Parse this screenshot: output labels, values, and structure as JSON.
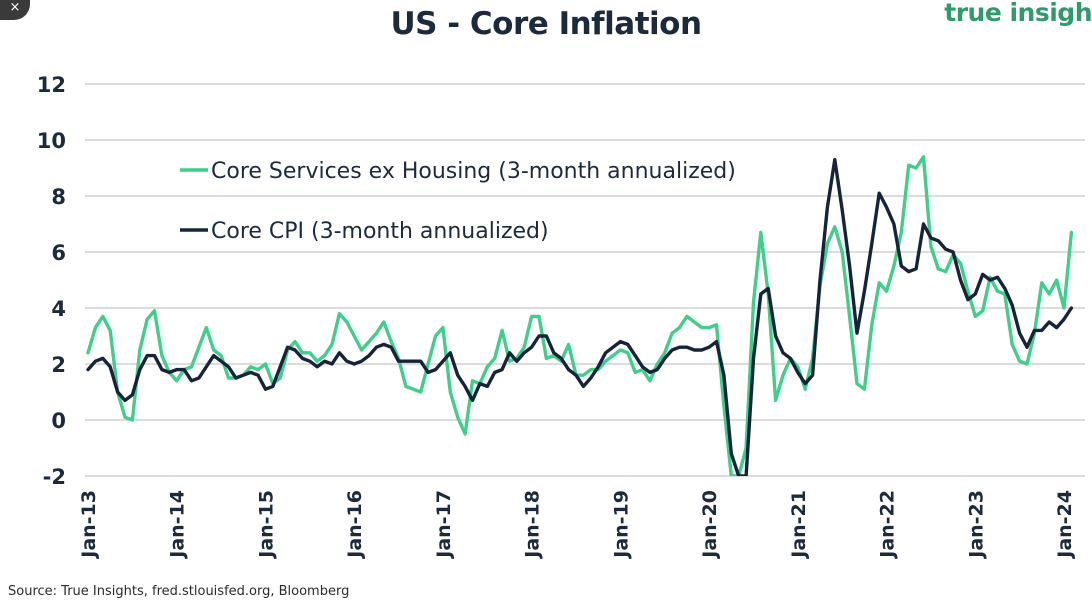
{
  "header": {
    "logo_text": "true insigh",
    "close_glyph": "×"
  },
  "footer": {
    "source": "Source: True Insights, fred.stlouisfed.org, Bloomberg"
  },
  "colors": {
    "services": "#3fcf8a",
    "core": "#15243a",
    "grid": "#b8b8b8",
    "text": "#1b2a3c"
  },
  "chart_data": {
    "type": "line",
    "title": "US - Core Inflation",
    "xlabel": "",
    "ylabel": "",
    "ylim": [
      -2,
      12
    ],
    "yticks": [
      12,
      10,
      8,
      6,
      4,
      2,
      0,
      -2
    ],
    "xticks": [
      "Jan-13",
      "Jan-14",
      "Jan-15",
      "Jan-16",
      "Jan-17",
      "Jan-18",
      "Jan-19",
      "Jan-20",
      "Jan-21",
      "Jan-22",
      "Jan-23",
      "Jan-24"
    ],
    "grid": true,
    "legend_position": "top-left",
    "series": [
      {
        "name": "Core Services ex Housing (3-month annualized)",
        "points": [
          [
            "2013-01",
            2.4
          ],
          [
            "2013-02",
            3.3
          ],
          [
            "2013-03",
            3.7
          ],
          [
            "2013-04",
            3.2
          ],
          [
            "2013-05",
            1.0
          ],
          [
            "2013-06",
            0.1
          ],
          [
            "2013-07",
            0.0
          ],
          [
            "2013-08",
            2.5
          ],
          [
            "2013-09",
            3.6
          ],
          [
            "2013-10",
            3.9
          ],
          [
            "2013-11",
            2.3
          ],
          [
            "2013-12",
            1.7
          ],
          [
            "2014-01",
            1.4
          ],
          [
            "2014-02",
            1.8
          ],
          [
            "2014-03",
            1.9
          ],
          [
            "2014-04",
            2.6
          ],
          [
            "2014-05",
            3.3
          ],
          [
            "2014-06",
            2.5
          ],
          [
            "2014-07",
            2.3
          ],
          [
            "2014-08",
            1.5
          ],
          [
            "2014-09",
            1.5
          ],
          [
            "2014-10",
            1.6
          ],
          [
            "2014-11",
            1.9
          ],
          [
            "2014-12",
            1.8
          ],
          [
            "2015-01",
            2.0
          ],
          [
            "2015-02",
            1.3
          ],
          [
            "2015-03",
            1.5
          ],
          [
            "2015-04",
            2.5
          ],
          [
            "2015-05",
            2.8
          ],
          [
            "2015-06",
            2.4
          ],
          [
            "2015-07",
            2.4
          ],
          [
            "2015-08",
            2.1
          ],
          [
            "2015-09",
            2.3
          ],
          [
            "2015-10",
            2.7
          ],
          [
            "2015-11",
            3.8
          ],
          [
            "2015-12",
            3.5
          ],
          [
            "2016-01",
            3.0
          ],
          [
            "2016-02",
            2.5
          ],
          [
            "2016-03",
            2.8
          ],
          [
            "2016-04",
            3.1
          ],
          [
            "2016-05",
            3.5
          ],
          [
            "2016-06",
            2.8
          ],
          [
            "2016-07",
            2.2
          ],
          [
            "2016-08",
            1.2
          ],
          [
            "2016-09",
            1.1
          ],
          [
            "2016-10",
            1.0
          ],
          [
            "2016-11",
            2.0
          ],
          [
            "2016-12",
            3.0
          ],
          [
            "2017-01",
            3.3
          ],
          [
            "2017-02",
            1.0
          ],
          [
            "2017-03",
            0.1
          ],
          [
            "2017-04",
            -0.5
          ],
          [
            "2017-05",
            1.4
          ],
          [
            "2017-06",
            1.3
          ],
          [
            "2017-07",
            1.9
          ],
          [
            "2017-08",
            2.2
          ],
          [
            "2017-09",
            3.2
          ],
          [
            "2017-10",
            2.1
          ],
          [
            "2017-11",
            2.2
          ],
          [
            "2017-12",
            2.6
          ],
          [
            "2018-01",
            3.7
          ],
          [
            "2018-02",
            3.7
          ],
          [
            "2018-03",
            2.2
          ],
          [
            "2018-04",
            2.3
          ],
          [
            "2018-05",
            2.1
          ],
          [
            "2018-06",
            2.7
          ],
          [
            "2018-07",
            1.6
          ],
          [
            "2018-08",
            1.6
          ],
          [
            "2018-09",
            1.8
          ],
          [
            "2018-10",
            1.8
          ],
          [
            "2018-11",
            2.1
          ],
          [
            "2018-12",
            2.3
          ],
          [
            "2019-01",
            2.5
          ],
          [
            "2019-02",
            2.4
          ],
          [
            "2019-03",
            1.7
          ],
          [
            "2019-04",
            1.8
          ],
          [
            "2019-05",
            1.4
          ],
          [
            "2019-06",
            2.0
          ],
          [
            "2019-07",
            2.4
          ],
          [
            "2019-08",
            3.1
          ],
          [
            "2019-09",
            3.3
          ],
          [
            "2019-10",
            3.7
          ],
          [
            "2019-11",
            3.5
          ],
          [
            "2019-12",
            3.3
          ],
          [
            "2020-01",
            3.3
          ],
          [
            "2020-02",
            3.4
          ],
          [
            "2020-03",
            0.5
          ],
          [
            "2020-04",
            -2.0
          ],
          [
            "2020-05",
            -2.0
          ],
          [
            "2020-06",
            -1.0
          ],
          [
            "2020-07",
            4.2
          ],
          [
            "2020-08",
            6.7
          ],
          [
            "2020-09",
            4.5
          ],
          [
            "2020-10",
            0.7
          ],
          [
            "2020-11",
            1.6
          ],
          [
            "2020-12",
            2.2
          ],
          [
            "2021-01",
            1.9
          ],
          [
            "2021-02",
            1.1
          ],
          [
            "2021-03",
            2.2
          ],
          [
            "2021-04",
            4.8
          ],
          [
            "2021-05",
            6.3
          ],
          [
            "2021-06",
            6.9
          ],
          [
            "2021-07",
            6.0
          ],
          [
            "2021-08",
            3.7
          ],
          [
            "2021-09",
            1.3
          ],
          [
            "2021-10",
            1.1
          ],
          [
            "2021-11",
            3.4
          ],
          [
            "2021-12",
            4.9
          ],
          [
            "2022-01",
            4.6
          ],
          [
            "2022-02",
            5.5
          ],
          [
            "2022-03",
            6.7
          ],
          [
            "2022-04",
            9.1
          ],
          [
            "2022-05",
            9.0
          ],
          [
            "2022-06",
            9.4
          ],
          [
            "2022-07",
            6.2
          ],
          [
            "2022-08",
            5.4
          ],
          [
            "2022-09",
            5.3
          ],
          [
            "2022-10",
            5.9
          ],
          [
            "2022-11",
            5.6
          ],
          [
            "2022-12",
            4.6
          ],
          [
            "2023-01",
            3.7
          ],
          [
            "2023-02",
            3.9
          ],
          [
            "2023-03",
            5.1
          ],
          [
            "2023-04",
            4.6
          ],
          [
            "2023-05",
            4.5
          ],
          [
            "2023-06",
            2.7
          ],
          [
            "2023-07",
            2.1
          ],
          [
            "2023-08",
            2.0
          ],
          [
            "2023-09",
            3.1
          ],
          [
            "2023-10",
            4.9
          ],
          [
            "2023-11",
            4.5
          ],
          [
            "2023-12",
            5.0
          ],
          [
            "2024-01",
            4.0
          ],
          [
            "2024-02",
            6.7
          ]
        ]
      },
      {
        "name": "Core CPI (3-month annualized)",
        "points": [
          [
            "2013-01",
            1.8
          ],
          [
            "2013-02",
            2.1
          ],
          [
            "2013-03",
            2.2
          ],
          [
            "2013-04",
            1.9
          ],
          [
            "2013-05",
            1.0
          ],
          [
            "2013-06",
            0.7
          ],
          [
            "2013-07",
            0.9
          ],
          [
            "2013-08",
            1.8
          ],
          [
            "2013-09",
            2.3
          ],
          [
            "2013-10",
            2.3
          ],
          [
            "2013-11",
            1.8
          ],
          [
            "2013-12",
            1.7
          ],
          [
            "2014-01",
            1.8
          ],
          [
            "2014-02",
            1.8
          ],
          [
            "2014-03",
            1.4
          ],
          [
            "2014-04",
            1.5
          ],
          [
            "2014-05",
            1.9
          ],
          [
            "2014-06",
            2.3
          ],
          [
            "2014-07",
            2.1
          ],
          [
            "2014-08",
            1.9
          ],
          [
            "2014-09",
            1.5
          ],
          [
            "2014-10",
            1.6
          ],
          [
            "2014-11",
            1.7
          ],
          [
            "2014-12",
            1.6
          ],
          [
            "2015-01",
            1.1
          ],
          [
            "2015-02",
            1.2
          ],
          [
            "2015-03",
            1.9
          ],
          [
            "2015-04",
            2.6
          ],
          [
            "2015-05",
            2.5
          ],
          [
            "2015-06",
            2.2
          ],
          [
            "2015-07",
            2.1
          ],
          [
            "2015-08",
            1.9
          ],
          [
            "2015-09",
            2.1
          ],
          [
            "2015-10",
            2.0
          ],
          [
            "2015-11",
            2.4
          ],
          [
            "2015-12",
            2.1
          ],
          [
            "2016-01",
            2.0
          ],
          [
            "2016-02",
            2.1
          ],
          [
            "2016-03",
            2.3
          ],
          [
            "2016-04",
            2.6
          ],
          [
            "2016-05",
            2.7
          ],
          [
            "2016-06",
            2.6
          ],
          [
            "2016-07",
            2.1
          ],
          [
            "2016-08",
            2.1
          ],
          [
            "2016-09",
            2.1
          ],
          [
            "2016-10",
            2.1
          ],
          [
            "2016-11",
            1.7
          ],
          [
            "2016-12",
            1.8
          ],
          [
            "2017-01",
            2.1
          ],
          [
            "2017-02",
            2.4
          ],
          [
            "2017-03",
            1.6
          ],
          [
            "2017-04",
            1.2
          ],
          [
            "2017-05",
            0.7
          ],
          [
            "2017-06",
            1.3
          ],
          [
            "2017-07",
            1.2
          ],
          [
            "2017-08",
            1.7
          ],
          [
            "2017-09",
            1.8
          ],
          [
            "2017-10",
            2.4
          ],
          [
            "2017-11",
            2.1
          ],
          [
            "2017-12",
            2.4
          ],
          [
            "2018-01",
            2.6
          ],
          [
            "2018-02",
            3.0
          ],
          [
            "2018-03",
            3.0
          ],
          [
            "2018-04",
            2.4
          ],
          [
            "2018-05",
            2.2
          ],
          [
            "2018-06",
            1.8
          ],
          [
            "2018-07",
            1.6
          ],
          [
            "2018-08",
            1.2
          ],
          [
            "2018-09",
            1.5
          ],
          [
            "2018-10",
            1.9
          ],
          [
            "2018-11",
            2.4
          ],
          [
            "2018-12",
            2.6
          ],
          [
            "2019-01",
            2.8
          ],
          [
            "2019-02",
            2.7
          ],
          [
            "2019-03",
            2.3
          ],
          [
            "2019-04",
            1.9
          ],
          [
            "2019-05",
            1.7
          ],
          [
            "2019-06",
            1.8
          ],
          [
            "2019-07",
            2.2
          ],
          [
            "2019-08",
            2.5
          ],
          [
            "2019-09",
            2.6
          ],
          [
            "2019-10",
            2.6
          ],
          [
            "2019-11",
            2.5
          ],
          [
            "2019-12",
            2.5
          ],
          [
            "2020-01",
            2.6
          ],
          [
            "2020-02",
            2.8
          ],
          [
            "2020-03",
            1.6
          ],
          [
            "2020-04",
            -1.2
          ],
          [
            "2020-05",
            -2.0
          ],
          [
            "2020-06",
            -2.0
          ],
          [
            "2020-07",
            2.2
          ],
          [
            "2020-08",
            4.5
          ],
          [
            "2020-09",
            4.7
          ],
          [
            "2020-10",
            3.0
          ],
          [
            "2020-11",
            2.4
          ],
          [
            "2020-12",
            2.2
          ],
          [
            "2021-01",
            1.7
          ],
          [
            "2021-02",
            1.3
          ],
          [
            "2021-03",
            1.6
          ],
          [
            "2021-04",
            5.0
          ],
          [
            "2021-05",
            7.6
          ],
          [
            "2021-06",
            9.3
          ],
          [
            "2021-07",
            7.5
          ],
          [
            "2021-08",
            5.5
          ],
          [
            "2021-09",
            3.1
          ],
          [
            "2021-10",
            4.6
          ],
          [
            "2021-11",
            6.3
          ],
          [
            "2021-12",
            8.1
          ],
          [
            "2022-01",
            7.6
          ],
          [
            "2022-02",
            7.0
          ],
          [
            "2022-03",
            5.5
          ],
          [
            "2022-04",
            5.3
          ],
          [
            "2022-05",
            5.4
          ],
          [
            "2022-06",
            7.0
          ],
          [
            "2022-07",
            6.5
          ],
          [
            "2022-08",
            6.4
          ],
          [
            "2022-09",
            6.1
          ],
          [
            "2022-10",
            6.0
          ],
          [
            "2022-11",
            5.0
          ],
          [
            "2022-12",
            4.3
          ],
          [
            "2023-01",
            4.5
          ],
          [
            "2023-02",
            5.2
          ],
          [
            "2023-03",
            5.0
          ],
          [
            "2023-04",
            5.1
          ],
          [
            "2023-05",
            4.7
          ],
          [
            "2023-06",
            4.1
          ],
          [
            "2023-07",
            3.1
          ],
          [
            "2023-08",
            2.6
          ],
          [
            "2023-09",
            3.2
          ],
          [
            "2023-10",
            3.2
          ],
          [
            "2023-11",
            3.5
          ],
          [
            "2023-12",
            3.3
          ],
          [
            "2024-01",
            3.6
          ],
          [
            "2024-02",
            4.0
          ]
        ]
      }
    ]
  }
}
